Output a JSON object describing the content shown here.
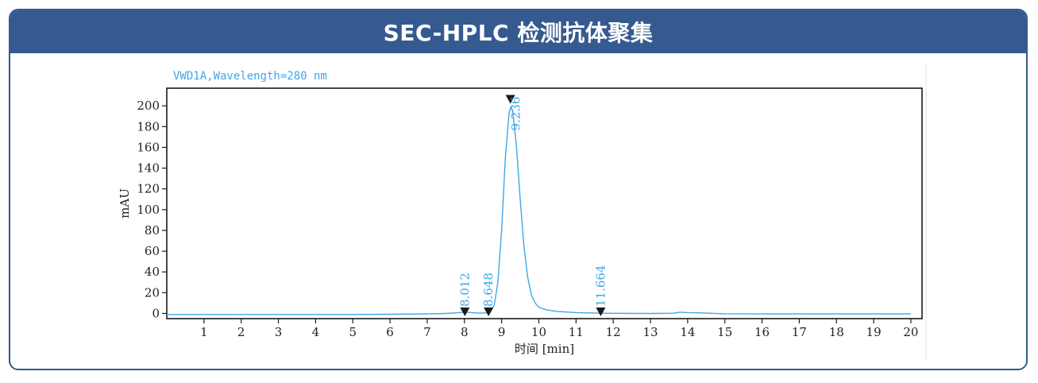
{
  "header": {
    "title": "SEC-HPLC 检测抗体聚集"
  },
  "colors": {
    "header_bg": "#355a8f",
    "trace": "#3fa7e8",
    "marker": "#1a1a1a"
  },
  "chart_data": {
    "type": "line",
    "signal": "VWD1A,Wavelength=280 nm",
    "xlabel": "时间 [min]",
    "ylabel": "mAU",
    "xlim": [
      0,
      20.3
    ],
    "ylim": [
      -5,
      217
    ],
    "xticks": [
      1,
      2,
      3,
      4,
      5,
      6,
      7,
      8,
      9,
      10,
      11,
      12,
      13,
      14,
      15,
      16,
      17,
      18,
      19,
      20
    ],
    "yticks": [
      0,
      20,
      40,
      60,
      80,
      100,
      120,
      140,
      160,
      180,
      200
    ],
    "series": [
      {
        "x": [
          0,
          1,
          2,
          3,
          4,
          5,
          6,
          7,
          7.5,
          7.8,
          8.0,
          8.2,
          8.4,
          8.6,
          8.7,
          8.8,
          8.9,
          9.0,
          9.1,
          9.2,
          9.25,
          9.3,
          9.4,
          9.5,
          9.6,
          9.7,
          9.8,
          9.9,
          10.0,
          10.2,
          10.5,
          11.0,
          11.6,
          12.0,
          13.0,
          13.6,
          13.8,
          14.0,
          14.3,
          14.6,
          15.0,
          16,
          17,
          18,
          19,
          20
        ],
        "y": [
          -1,
          -1,
          -1,
          -1,
          -1,
          -1,
          -0.8,
          -0.5,
          0,
          0.6,
          1.2,
          0.8,
          0.3,
          0.6,
          2,
          8,
          30,
          80,
          150,
          193,
          199,
          195,
          160,
          110,
          65,
          35,
          18,
          10,
          6,
          3.5,
          2,
          0.8,
          0.3,
          0.1,
          0,
          0.2,
          1.2,
          0.8,
          0.6,
          0.2,
          -0.3,
          -0.5,
          -0.5,
          -0.5,
          -0.5,
          -0.5
        ]
      }
    ],
    "peaks": [
      {
        "label": "8.012",
        "x": 8.012,
        "y": 1.2
      },
      {
        "label": "8.648",
        "x": 8.648,
        "y": 0.8
      },
      {
        "label": "9.236",
        "x": 9.236,
        "y": 199
      },
      {
        "label": "11.664",
        "x": 11.664,
        "y": 0.3
      }
    ]
  }
}
